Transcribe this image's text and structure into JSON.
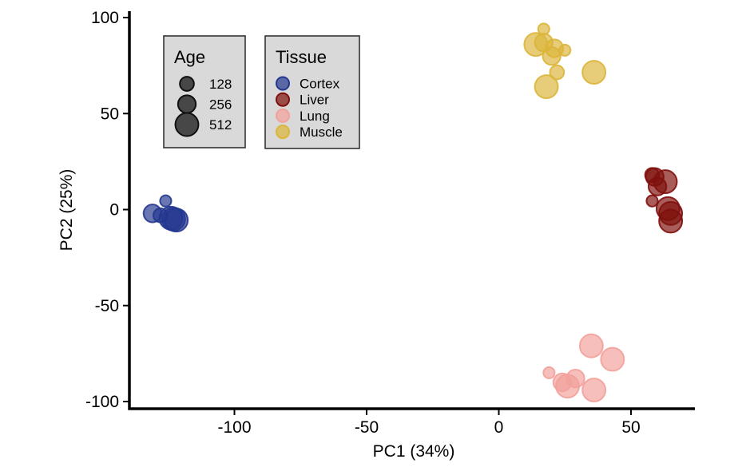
{
  "chart_data": {
    "type": "scatter",
    "title": "",
    "xlabel": "PC1 (34%)",
    "ylabel": "PC2 (25%)",
    "xlim": [
      -140,
      75
    ],
    "ylim": [
      -102,
      102
    ],
    "x_ticks": [
      -100,
      -50,
      0,
      50
    ],
    "y_ticks": [
      -100,
      -50,
      0,
      50,
      100
    ],
    "grid": false,
    "legends": {
      "size": {
        "title": "Age",
        "entries": [
          {
            "label": "128",
            "value": 128
          },
          {
            "label": "256",
            "value": 256
          },
          {
            "label": "512",
            "value": 512
          }
        ],
        "color": "#3f3f3f",
        "placement": "top-left"
      },
      "color": {
        "title": "Tissue",
        "placement": "top-left"
      }
    },
    "series": [
      {
        "name": "Cortex",
        "color": "#23378f",
        "points": [
          {
            "x": -126,
            "y": 4.5,
            "age": 60
          },
          {
            "x": -131,
            "y": -2,
            "age": 256
          },
          {
            "x": -128,
            "y": -3,
            "age": 128
          },
          {
            "x": -124,
            "y": -4.5,
            "age": 512
          },
          {
            "x": -122,
            "y": -5.5,
            "age": 512
          },
          {
            "x": -123,
            "y": -5,
            "age": 512
          }
        ]
      },
      {
        "name": "Liver",
        "color": "#7f100c",
        "points": [
          {
            "x": 58,
            "y": 18,
            "age": 128
          },
          {
            "x": 59,
            "y": 17,
            "age": 256
          },
          {
            "x": 60,
            "y": 12,
            "age": 256
          },
          {
            "x": 63,
            "y": 14.5,
            "age": 512
          },
          {
            "x": 58,
            "y": 4.5,
            "age": 60
          },
          {
            "x": 64,
            "y": 0.5,
            "age": 512
          },
          {
            "x": 65,
            "y": -2,
            "age": 512
          },
          {
            "x": 65,
            "y": -6,
            "age": 512
          }
        ]
      },
      {
        "name": "Lung",
        "color": "#f2a19b",
        "points": [
          {
            "x": 35,
            "y": -71,
            "age": 512
          },
          {
            "x": 43,
            "y": -78,
            "age": 512
          },
          {
            "x": 19,
            "y": -85,
            "age": 60
          },
          {
            "x": 29,
            "y": -88,
            "age": 256
          },
          {
            "x": 24,
            "y": -90,
            "age": 256
          },
          {
            "x": 26,
            "y": -92,
            "age": 512
          },
          {
            "x": 36,
            "y": -94,
            "age": 512
          }
        ]
      },
      {
        "name": "Muscle",
        "color": "#dcb53a",
        "points": [
          {
            "x": 17,
            "y": 94,
            "age": 60
          },
          {
            "x": 14,
            "y": 86,
            "age": 512
          },
          {
            "x": 17,
            "y": 87,
            "age": 256
          },
          {
            "x": 21,
            "y": 84,
            "age": 256
          },
          {
            "x": 25,
            "y": 83,
            "age": 60
          },
          {
            "x": 20,
            "y": 80,
            "age": 256
          },
          {
            "x": 22,
            "y": 71.5,
            "age": 128
          },
          {
            "x": 36,
            "y": 71.5,
            "age": 512
          },
          {
            "x": 18,
            "y": 64,
            "age": 512
          }
        ]
      }
    ]
  }
}
